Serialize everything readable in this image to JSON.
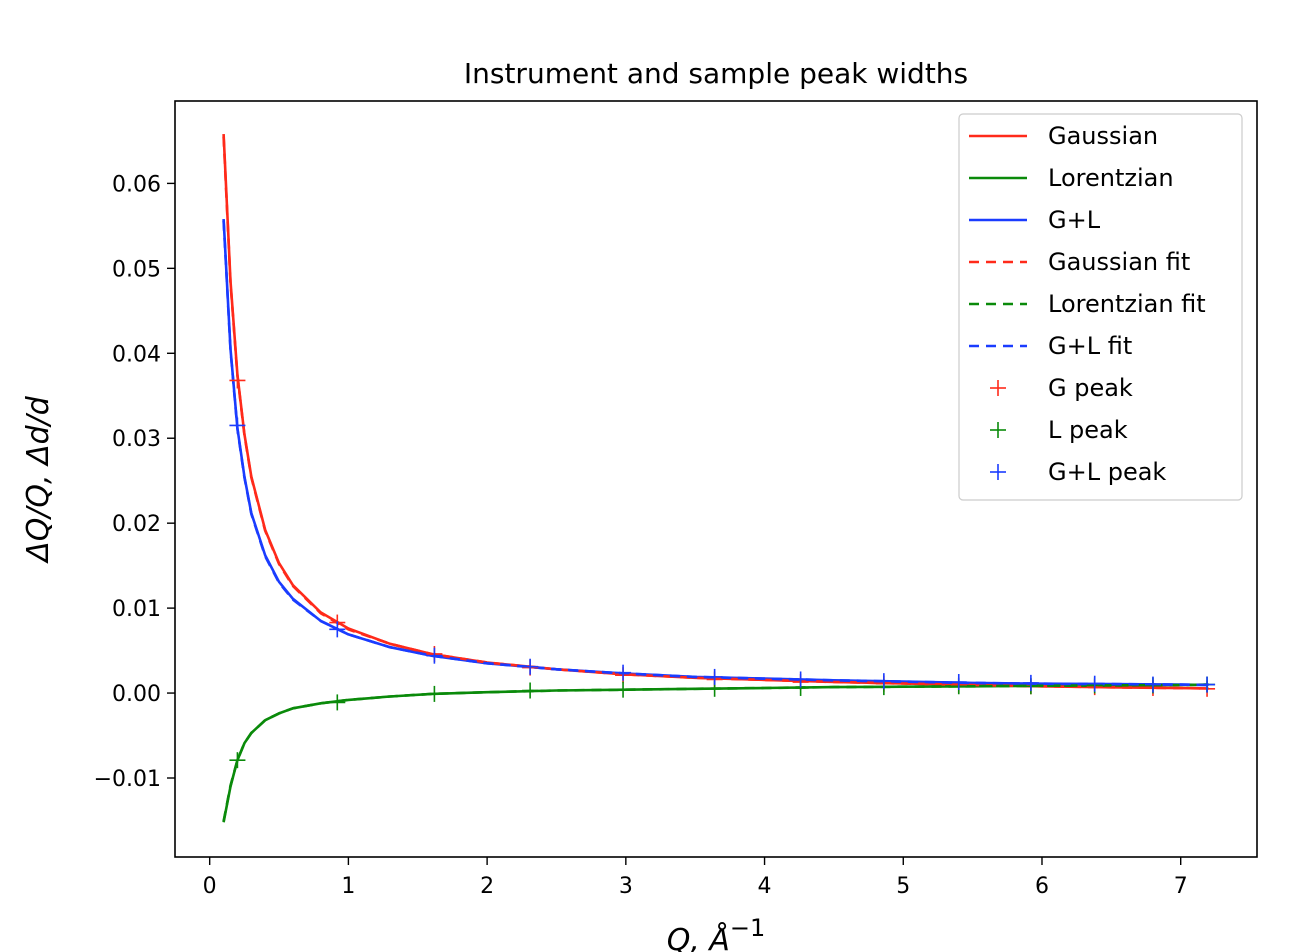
{
  "chart_data": {
    "type": "line",
    "title": "Instrument and sample peak widths",
    "xlabel": "Q, Å",
    "xlabel_sup": "−1",
    "ylabel": "ΔQ/Q, Δd/d",
    "xlim": [
      -0.25,
      7.55
    ],
    "ylim": [
      -0.0193,
      0.0697
    ],
    "xticks": [
      0,
      1,
      2,
      3,
      4,
      5,
      6,
      7
    ],
    "xtick_labels": [
      "0",
      "1",
      "2",
      "3",
      "4",
      "5",
      "6",
      "7"
    ],
    "yticks": [
      -0.01,
      0.0,
      0.01,
      0.02,
      0.03,
      0.04,
      0.05,
      0.06
    ],
    "ytick_labels": [
      "−0.01",
      "0.00",
      "0.01",
      "0.02",
      "0.03",
      "0.04",
      "0.05",
      "0.06"
    ],
    "grid": false,
    "legend_position": "top-right",
    "legend": [
      "Gaussian",
      "Lorentzian",
      "G+L",
      "Gaussian fit",
      "Lorentzian fit",
      "G+L fit",
      "G peak",
      "L peak",
      "G+L peak"
    ],
    "colors": {
      "gaussian": "#ff2a1a",
      "lorentzian": "#0a8a0a",
      "gl": "#1a3cff"
    },
    "series": [
      {
        "name": "Gaussian",
        "style": "solid",
        "color": "#ff2a1a",
        "x": [
          0.1,
          0.15,
          0.2,
          0.25,
          0.3,
          0.4,
          0.5,
          0.6,
          0.8,
          1.0,
          1.3,
          1.6,
          2.0,
          2.5,
          3.0,
          3.5,
          4.0,
          4.5,
          5.0,
          5.5,
          6.0,
          6.5,
          7.0,
          7.2
        ],
        "y": [
          0.0658,
          0.0485,
          0.0375,
          0.0305,
          0.0255,
          0.0192,
          0.0153,
          0.0127,
          0.0095,
          0.0076,
          0.0058,
          0.0046,
          0.0036,
          0.0028,
          0.0022,
          0.0018,
          0.00155,
          0.0013,
          0.00112,
          0.00095,
          0.0008,
          0.00068,
          0.00058,
          0.00055
        ]
      },
      {
        "name": "Lorentzian",
        "style": "solid",
        "color": "#0a8a0a",
        "x": [
          0.1,
          0.15,
          0.2,
          0.25,
          0.3,
          0.4,
          0.5,
          0.6,
          0.8,
          1.0,
          1.3,
          1.6,
          2.0,
          2.5,
          3.0,
          3.5,
          4.0,
          4.5,
          5.0,
          5.5,
          6.0,
          6.5,
          7.0,
          7.2
        ],
        "y": [
          -0.0152,
          -0.011,
          -0.0079,
          -0.0059,
          -0.0047,
          -0.0032,
          -0.0024,
          -0.0018,
          -0.0012,
          -0.0008,
          -0.0004,
          -0.0001,
          0.0001,
          0.0003,
          0.0004,
          0.0005,
          0.0006,
          0.0007,
          0.00075,
          0.0008,
          0.00085,
          0.0009,
          0.00095,
          0.001
        ]
      },
      {
        "name": "G+L",
        "style": "solid",
        "color": "#1a3cff",
        "x": [
          0.1,
          0.15,
          0.2,
          0.25,
          0.3,
          0.4,
          0.5,
          0.6,
          0.8,
          1.0,
          1.3,
          1.6,
          2.0,
          2.5,
          3.0,
          3.5,
          4.0,
          4.5,
          5.0,
          5.5,
          6.0,
          6.5,
          7.0,
          7.2
        ],
        "y": [
          0.0558,
          0.0405,
          0.0312,
          0.0255,
          0.0212,
          0.0162,
          0.0131,
          0.0111,
          0.0085,
          0.0069,
          0.0054,
          0.0044,
          0.0035,
          0.0028,
          0.0023,
          0.0019,
          0.0017,
          0.0015,
          0.00135,
          0.0012,
          0.0011,
          0.00105,
          0.001,
          0.00095
        ]
      },
      {
        "name": "Gaussian fit",
        "style": "dashed",
        "color": "#ff2a1a",
        "x": [
          0.1,
          0.15,
          0.2,
          0.25,
          0.3,
          0.4,
          0.5,
          0.6,
          0.8,
          1.0,
          1.3,
          1.6,
          2.0,
          2.5,
          3.0,
          3.5,
          4.0,
          4.5,
          5.0,
          5.5,
          6.0,
          6.5,
          7.0,
          7.2
        ],
        "y": [
          0.0655,
          0.0483,
          0.0374,
          0.0304,
          0.0254,
          0.0191,
          0.0152,
          0.0126,
          0.0094,
          0.0075,
          0.0058,
          0.0046,
          0.0036,
          0.0028,
          0.0022,
          0.0018,
          0.00155,
          0.0013,
          0.00112,
          0.00095,
          0.0008,
          0.00068,
          0.00058,
          0.00055
        ]
      },
      {
        "name": "Lorentzian fit",
        "style": "dashed",
        "color": "#0a8a0a",
        "x": [
          0.1,
          0.15,
          0.2,
          0.25,
          0.3,
          0.4,
          0.5,
          0.6,
          0.8,
          1.0,
          1.3,
          1.6,
          2.0,
          2.5,
          3.0,
          3.5,
          4.0,
          4.5,
          5.0,
          5.5,
          6.0,
          6.5,
          7.0,
          7.2
        ],
        "y": [
          -0.0151,
          -0.0109,
          -0.0079,
          -0.0059,
          -0.0047,
          -0.0032,
          -0.0024,
          -0.0018,
          -0.0012,
          -0.0008,
          -0.0004,
          -0.0001,
          0.0001,
          0.0003,
          0.0004,
          0.0005,
          0.0006,
          0.0007,
          0.00075,
          0.0008,
          0.00085,
          0.0009,
          0.00095,
          0.001
        ]
      },
      {
        "name": "G+L fit",
        "style": "dashed",
        "color": "#1a3cff",
        "x": [
          0.1,
          0.15,
          0.2,
          0.25,
          0.3,
          0.4,
          0.5,
          0.6,
          0.8,
          1.0,
          1.3,
          1.6,
          2.0,
          2.5,
          3.0,
          3.5,
          4.0,
          4.5,
          5.0,
          5.5,
          6.0,
          6.5,
          7.0,
          7.2
        ],
        "y": [
          0.0556,
          0.0404,
          0.0311,
          0.0254,
          0.0211,
          0.0161,
          0.013,
          0.011,
          0.0085,
          0.0069,
          0.0054,
          0.0044,
          0.0035,
          0.0028,
          0.0023,
          0.0019,
          0.0017,
          0.0015,
          0.00135,
          0.0012,
          0.0011,
          0.00105,
          0.001,
          0.00095
        ]
      },
      {
        "name": "G peak",
        "style": "marker",
        "color": "#ff2a1a",
        "x": [
          0.2,
          0.92,
          1.62,
          2.31,
          2.98,
          3.64,
          4.26,
          4.86,
          5.4,
          5.92,
          6.38,
          6.8,
          7.19
        ],
        "y": [
          0.0368,
          0.0083,
          0.0046,
          0.003,
          0.0021,
          0.0016,
          0.0013,
          0.0011,
          0.0009,
          0.0008,
          0.0007,
          0.0006,
          0.0005
        ]
      },
      {
        "name": "L peak",
        "style": "marker",
        "color": "#0a8a0a",
        "x": [
          0.2,
          0.92,
          1.62,
          2.31,
          2.98,
          3.64,
          4.26,
          4.86,
          5.4,
          5.92,
          6.38,
          6.8,
          7.19
        ],
        "y": [
          -0.0079,
          -0.0011,
          -0.0001,
          0.0003,
          0.0004,
          0.0005,
          0.0006,
          0.0007,
          0.0008,
          0.0008,
          0.0009,
          0.0009,
          0.001
        ]
      },
      {
        "name": "G+L peak",
        "style": "marker",
        "color": "#1a3cff",
        "x": [
          0.2,
          0.92,
          1.62,
          2.31,
          2.98,
          3.64,
          4.26,
          4.86,
          5.4,
          5.92,
          6.38,
          6.8,
          7.19
        ],
        "y": [
          0.0315,
          0.0075,
          0.0044,
          0.0031,
          0.0024,
          0.0019,
          0.0016,
          0.0014,
          0.0013,
          0.0012,
          0.0011,
          0.001,
          0.001
        ]
      }
    ]
  }
}
